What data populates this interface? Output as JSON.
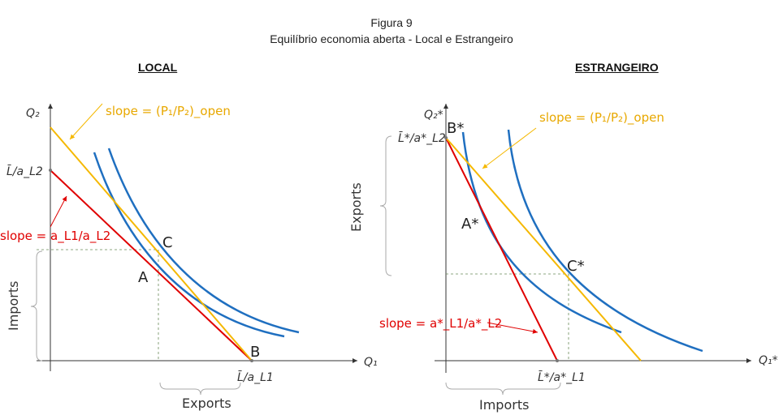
{
  "header": {
    "figure": "Figura 9",
    "subtitle": "Equilíbrio economia aberta - Local e Estrangeiro"
  },
  "local": {
    "title": "LOCAL",
    "y_axis": "Q₂",
    "x_axis": "Q₁",
    "y_intercept": "L̄/a_L2",
    "x_intercept": "L̄/a_L1",
    "slope_open": "slope = (P₁/P₂)_open",
    "slope_autarky": "slope = a_L1/a_L2",
    "point_a": "A",
    "point_b": "B",
    "point_c": "C",
    "imports_label": "Imports",
    "exports_label": "Exports"
  },
  "foreign": {
    "title": "ESTRANGEIRO",
    "y_axis": "Q₂*",
    "x_axis": "Q₁*",
    "y_intercept": "L̄*/a*_L2",
    "x_intercept": "L̄*/a*_L1",
    "slope_open": "slope = (P₁/P₂)_open",
    "slope_autarky": "slope = a*_L1/a*_L2",
    "point_a": "A*",
    "point_b": "B*",
    "point_c": "C*",
    "imports_label": "Imports",
    "exports_label": "Exports"
  },
  "colors": {
    "open_price_line": "#f5b800",
    "autarky_line": "#e00000",
    "indifference_curves": "#1f6fc0",
    "axes": "#333333",
    "guides": "#6a8a5a"
  }
}
